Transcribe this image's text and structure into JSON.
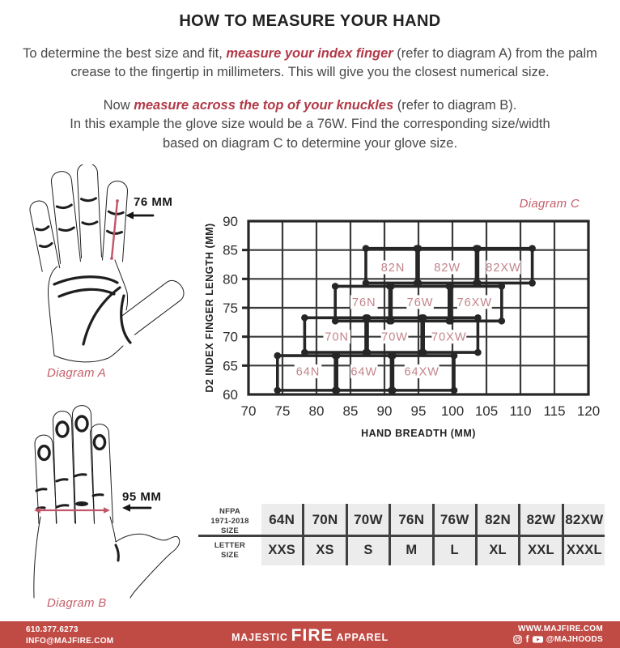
{
  "title": "HOW TO MEASURE YOUR HAND",
  "intro": {
    "p1_pre": "To determine the best size and fit, ",
    "p1_em": "measure your index finger",
    "p1_post": " (refer to diagram A) from the palm crease to the fingertip in millimeters. This will give you the closest numerical size.",
    "p2_pre": "Now ",
    "p2_em": "measure across the top of your knuckles",
    "p2_post": " (refer to diagram B).",
    "p2_line2": "In this example the glove size would be a 76W. Find the corresponding size/width",
    "p2_line3": "based on diagram C to determine your glove size."
  },
  "diagram_a": {
    "label": "Diagram A",
    "measurement": "76 MM"
  },
  "diagram_b": {
    "label": "Diagram B",
    "measurement": "95 MM"
  },
  "chart_data": {
    "type": "box-regions",
    "title": "Diagram C",
    "xlabel": "HAND BREADTH (MM)",
    "ylabel": "D2 INDEX FINGER LENGTH (MM)",
    "xlim": [
      70,
      120
    ],
    "ylim": [
      60,
      90
    ],
    "xticks": [
      70,
      75,
      80,
      85,
      90,
      95,
      100,
      105,
      110,
      115,
      120
    ],
    "yticks": [
      60,
      65,
      70,
      75,
      80,
      85,
      90
    ],
    "grid": true,
    "legend": "none",
    "regions": [
      {
        "label": "64N",
        "x": [
          74.5,
          83
        ],
        "y": [
          61,
          67
        ]
      },
      {
        "label": "64W",
        "x": [
          83,
          91
        ],
        "y": [
          61,
          67
        ]
      },
      {
        "label": "64XW",
        "x": [
          91,
          100
        ],
        "y": [
          61,
          67
        ]
      },
      {
        "label": "70N",
        "x": [
          78.5,
          87.5
        ],
        "y": [
          67,
          73
        ]
      },
      {
        "label": "70W",
        "x": [
          87.5,
          95.5
        ],
        "y": [
          67,
          73
        ]
      },
      {
        "label": "70XW",
        "x": [
          95.5,
          103.5
        ],
        "y": [
          67,
          73
        ]
      },
      {
        "label": "76N",
        "x": [
          83,
          91
        ],
        "y": [
          73,
          79
        ]
      },
      {
        "label": "76W",
        "x": [
          91,
          99.5
        ],
        "y": [
          73,
          79
        ]
      },
      {
        "label": "76XW",
        "x": [
          99.5,
          107
        ],
        "y": [
          73,
          79
        ]
      },
      {
        "label": "82N",
        "x": [
          87.5,
          95
        ],
        "y": [
          79,
          85
        ]
      },
      {
        "label": "82W",
        "x": [
          95,
          103.5
        ],
        "y": [
          79,
          85
        ]
      },
      {
        "label": "82XW",
        "x": [
          103.5,
          111.5
        ],
        "y": [
          79,
          85
        ]
      }
    ]
  },
  "table": {
    "rows": [
      {
        "header_lines": [
          "NFPA",
          "1971-2018",
          "SIZE"
        ],
        "cells": [
          "64N",
          "70N",
          "70W",
          "76N",
          "76W",
          "82N",
          "82W",
          "82XW"
        ]
      },
      {
        "header_lines": [
          "LETTER",
          "SIZE"
        ],
        "cells": [
          "XXS",
          "XS",
          "S",
          "M",
          "L",
          "XL",
          "XXL",
          "XXXL"
        ]
      }
    ]
  },
  "footer": {
    "phone": "610.377.6273",
    "email": "INFO@MAJFIRE.COM",
    "brand_left": "MAJESTIC",
    "brand_mid": "FIRE",
    "brand_right": "APPAREL",
    "website": "WWW.MAJFIRE.COM",
    "handle": "@MAJHOODS",
    "social_icons": [
      "instagram-icon",
      "facebook-icon",
      "youtube-icon"
    ]
  },
  "colors": {
    "accent_red": "#b23a48",
    "diagram_label": "#c45f69",
    "chart_region_label": "#c2838a",
    "measure_line": "#c25568",
    "ink": "#262626",
    "grid": "#3a3a3a",
    "footer_bg": "#c04b45",
    "table_bg": "#ececec"
  }
}
